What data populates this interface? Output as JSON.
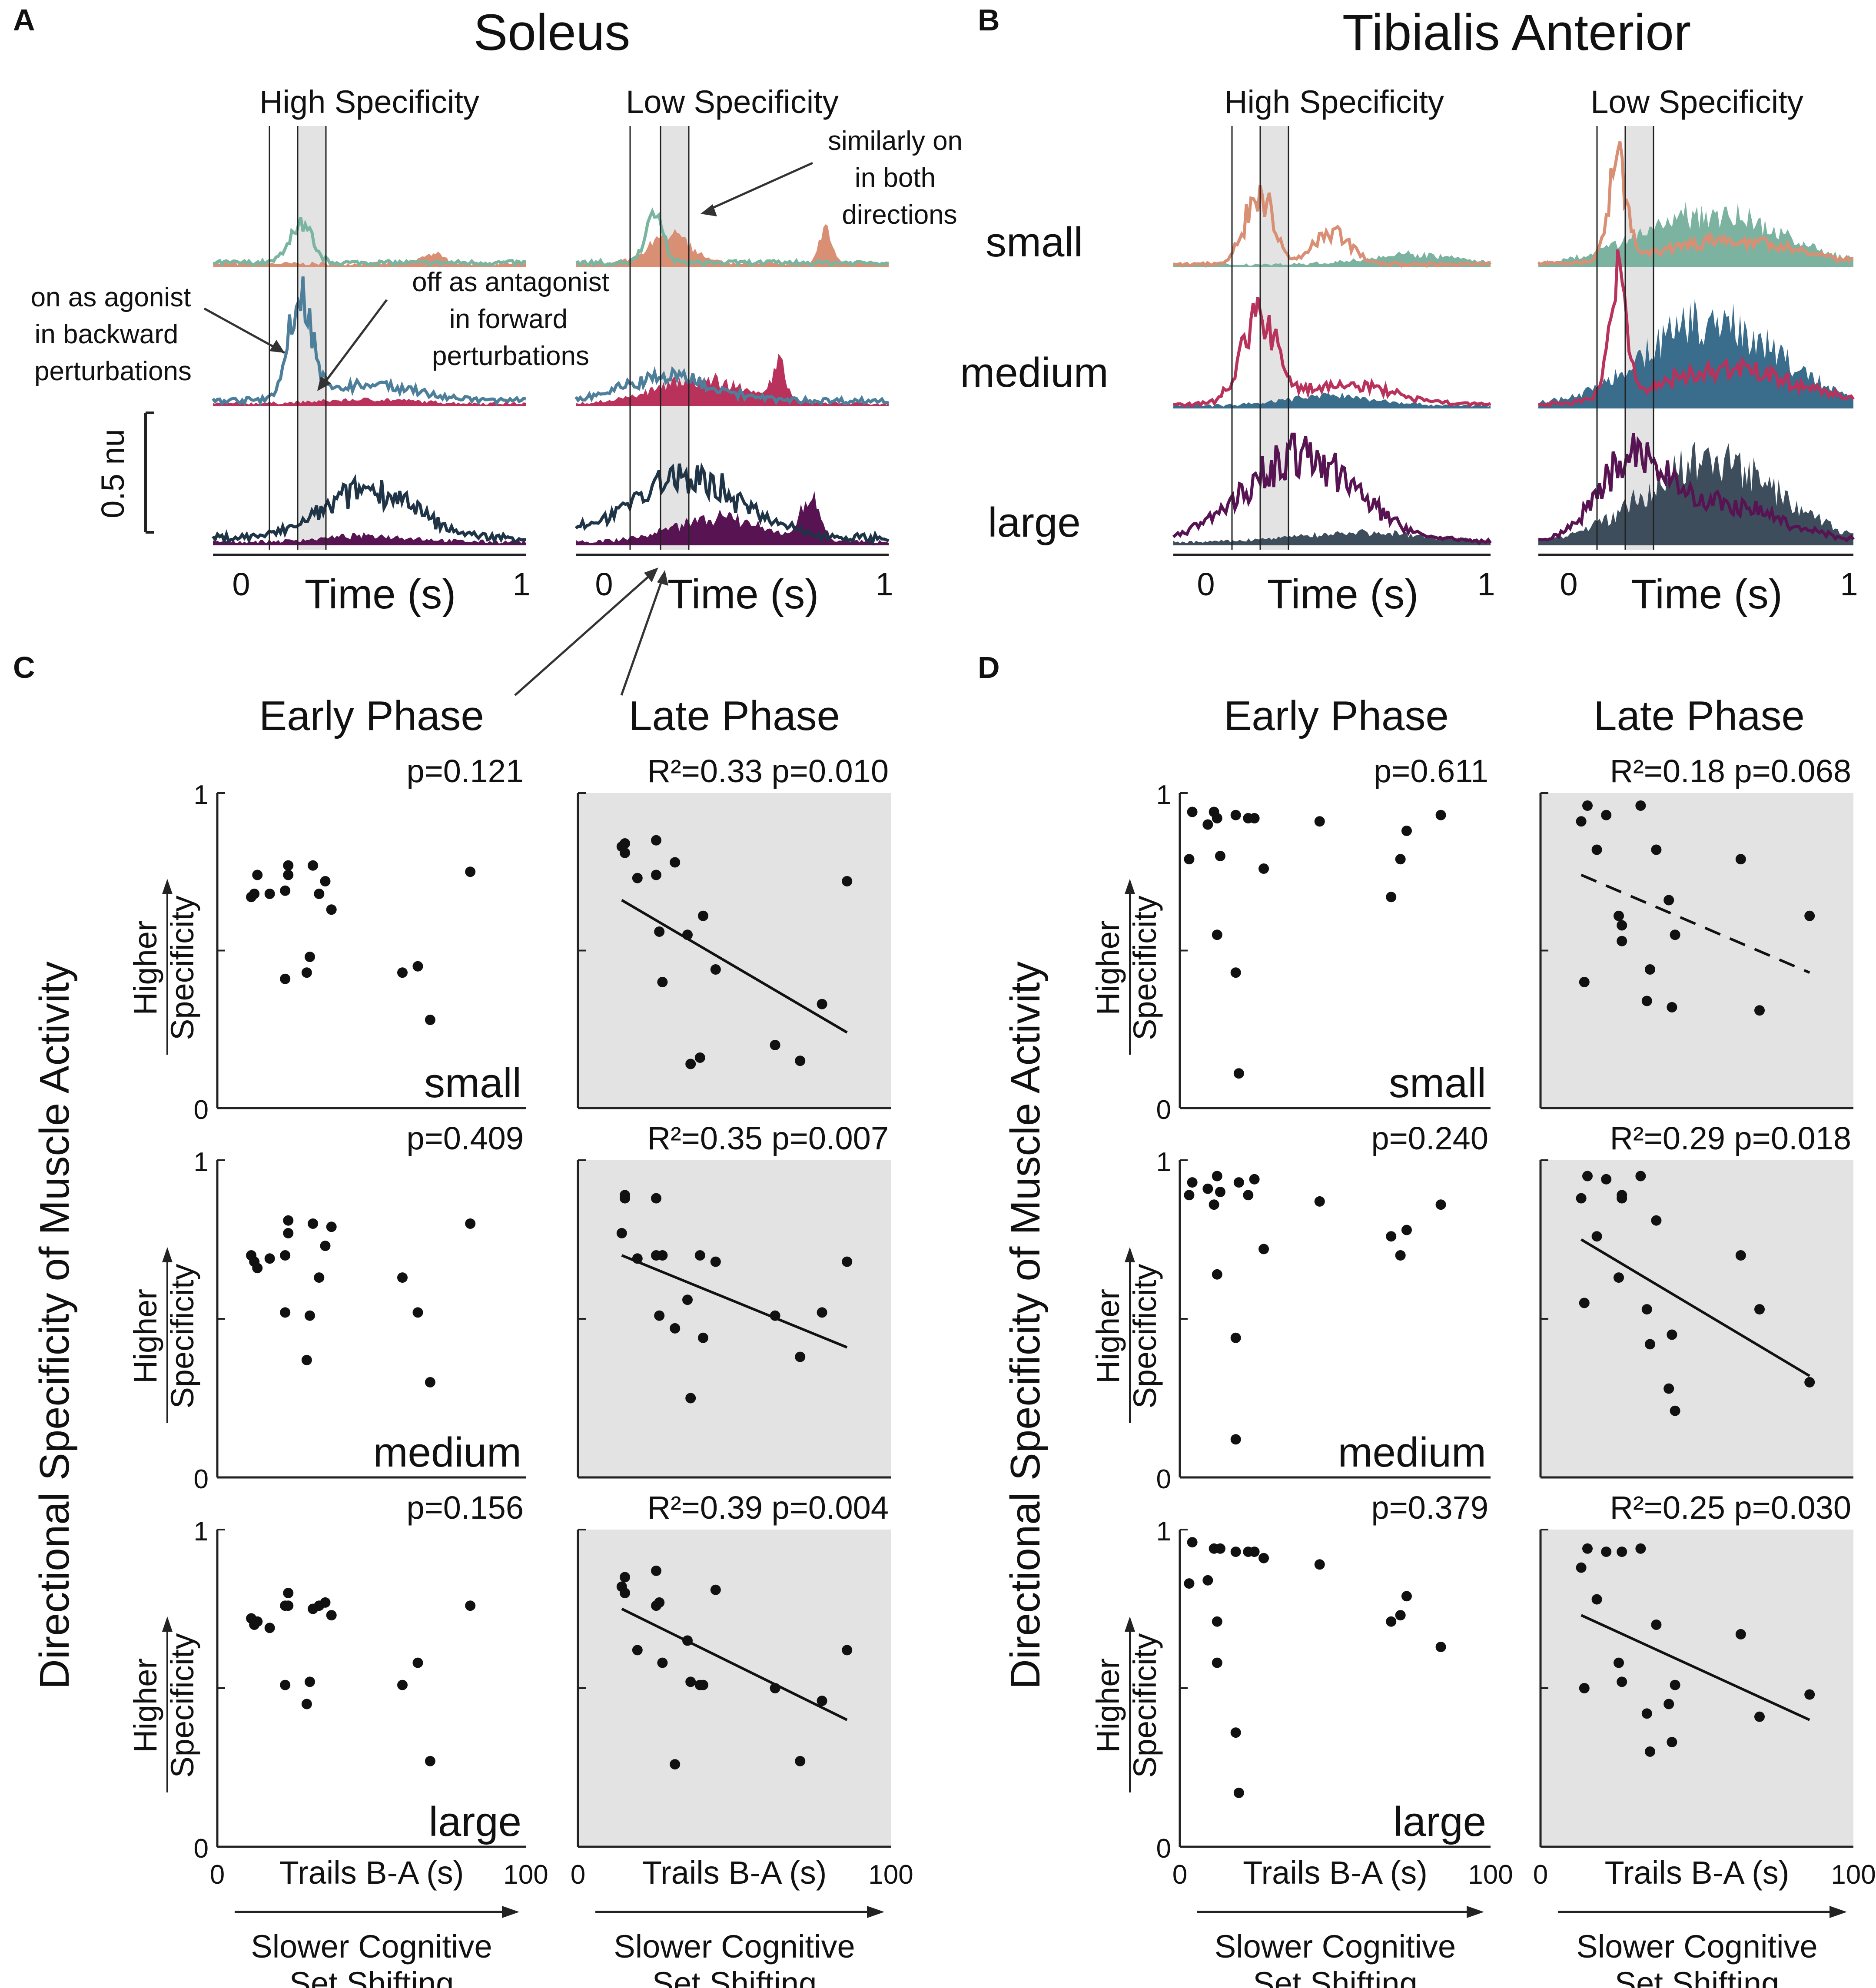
{
  "colors": {
    "soleus": {
      "small": "#d98f74",
      "small_line": "#7ab5a0",
      "medium": "#b8325c",
      "medium_line": "#4d7f9a",
      "large": "#581452",
      "large_line": "#1f3446"
    },
    "ta": {
      "small": "#7cb3a0",
      "small_line": "#d98f74",
      "medium": "#3a6c8c",
      "medium_line": "#b8325c",
      "large": "#3d4d5c",
      "large_line": "#581452"
    },
    "window": "#e3e3e3",
    "scatter_bg": "#e3e3e3"
  },
  "panels": {
    "A": {
      "letter": "A",
      "title": "Soleus"
    },
    "B": {
      "letter": "B",
      "title": "Tibialis Anterior"
    },
    "C": {
      "letter": "C"
    },
    "D": {
      "letter": "D"
    }
  },
  "traces": {
    "high_title": "High Specificity",
    "low_title": "Low Specificity",
    "xlabel": "Time (s)",
    "tick0": "0",
    "tick1": "1",
    "row_labels": [
      "small",
      "medium",
      "large"
    ],
    "scale_label": "0.5 nu",
    "annotations": {
      "agonist": [
        "on as agonist",
        "in backward",
        "perturbations"
      ],
      "antagonist": [
        "off as antagonist",
        "in forward",
        "perturbations"
      ],
      "similarly": [
        "similarly on",
        "in both",
        "directions"
      ]
    }
  },
  "scatter_text": {
    "early_title": "Early Phase",
    "late_title": "Late Phase",
    "xlabel": "Trails B-A (s)",
    "x0": "0",
    "x100": "100",
    "y0": "0",
    "y1": "1",
    "higher": "Higher",
    "specificity": "Specificity",
    "arrow_label_1": "Slower Cognitive",
    "arrow_label_2": "Set Shifting",
    "big_ylabel": "Directional Specificity of Muscle Activity"
  },
  "chart_data": [
    {
      "type": "scatter",
      "muscle": "Soleus",
      "phase": "Early Phase",
      "size": "small",
      "stat": "p=0.121",
      "fit": "none",
      "xlim": [
        0,
        100
      ],
      "ylim": [
        0,
        1
      ],
      "x": [
        11,
        12,
        13,
        17,
        22,
        22,
        23,
        23,
        29,
        30,
        31,
        33,
        35,
        37,
        60,
        65,
        69,
        82
      ],
      "y": [
        0.67,
        0.68,
        0.74,
        0.68,
        0.41,
        0.69,
        0.74,
        0.77,
        0.43,
        0.48,
        0.77,
        0.68,
        0.72,
        0.63,
        0.43,
        0.45,
        0.28,
        0.75
      ]
    },
    {
      "type": "scatter",
      "muscle": "Soleus",
      "phase": "Late Phase",
      "size": "small",
      "stat": "R²=0.33 p=0.010",
      "fit": "solid",
      "xlim": [
        0,
        100
      ],
      "ylim": [
        0,
        1
      ],
      "x": [
        14,
        15,
        15,
        19,
        25,
        25,
        26,
        27,
        31,
        35,
        36,
        39,
        40,
        44,
        63,
        71,
        78,
        86
      ],
      "y": [
        0.83,
        0.81,
        0.84,
        0.73,
        0.85,
        0.74,
        0.56,
        0.4,
        0.78,
        0.55,
        0.14,
        0.16,
        0.61,
        0.44,
        0.2,
        0.15,
        0.33,
        0.72
      ],
      "line": {
        "x": [
          14,
          86
        ],
        "y": [
          0.66,
          0.24
        ]
      }
    },
    {
      "type": "scatter",
      "muscle": "Soleus",
      "phase": "Early Phase",
      "size": "medium",
      "stat": "p=0.409",
      "fit": "none",
      "xlim": [
        0,
        100
      ],
      "ylim": [
        0,
        1
      ],
      "x": [
        11,
        12,
        13,
        17,
        22,
        22,
        23,
        23,
        29,
        30,
        31,
        33,
        35,
        37,
        60,
        65,
        69,
        82
      ],
      "y": [
        0.7,
        0.68,
        0.66,
        0.69,
        0.52,
        0.7,
        0.77,
        0.81,
        0.37,
        0.51,
        0.8,
        0.63,
        0.73,
        0.79,
        0.63,
        0.52,
        0.3,
        0.8
      ]
    },
    {
      "type": "scatter",
      "muscle": "Soleus",
      "phase": "Late Phase",
      "size": "medium",
      "stat": "R²=0.35 p=0.007",
      "fit": "solid",
      "xlim": [
        0,
        100
      ],
      "ylim": [
        0,
        1
      ],
      "x": [
        14,
        15,
        15,
        19,
        25,
        25,
        26,
        27,
        31,
        35,
        36,
        39,
        40,
        44,
        63,
        71,
        78,
        86
      ],
      "y": [
        0.77,
        0.88,
        0.89,
        0.69,
        0.88,
        0.7,
        0.51,
        0.7,
        0.47,
        0.56,
        0.25,
        0.7,
        0.44,
        0.68,
        0.51,
        0.38,
        0.52,
        0.68
      ],
      "line": {
        "x": [
          14,
          86
        ],
        "y": [
          0.7,
          0.41
        ]
      }
    },
    {
      "type": "scatter",
      "muscle": "Soleus",
      "phase": "Early Phase",
      "size": "large",
      "stat": "p=0.156",
      "fit": "none",
      "xlim": [
        0,
        100
      ],
      "ylim": [
        0,
        1
      ],
      "x": [
        11,
        12,
        13,
        17,
        22,
        22,
        23,
        23,
        29,
        30,
        31,
        33,
        35,
        37,
        60,
        65,
        69,
        82
      ],
      "y": [
        0.72,
        0.7,
        0.71,
        0.69,
        0.51,
        0.76,
        0.8,
        0.76,
        0.45,
        0.52,
        0.75,
        0.76,
        0.77,
        0.73,
        0.51,
        0.58,
        0.27,
        0.76
      ]
    },
    {
      "type": "scatter",
      "muscle": "Soleus",
      "phase": "Late Phase",
      "size": "large",
      "stat": "R²=0.39 p=0.004",
      "fit": "solid",
      "xlim": [
        0,
        100
      ],
      "ylim": [
        0,
        1
      ],
      "x": [
        14,
        15,
        15,
        19,
        25,
        25,
        26,
        27,
        31,
        35,
        36,
        39,
        40,
        44,
        63,
        71,
        78,
        86
      ],
      "y": [
        0.82,
        0.85,
        0.8,
        0.62,
        0.87,
        0.76,
        0.77,
        0.58,
        0.26,
        0.65,
        0.52,
        0.51,
        0.51,
        0.81,
        0.5,
        0.27,
        0.46,
        0.62
      ],
      "line": {
        "x": [
          14,
          86
        ],
        "y": [
          0.75,
          0.4
        ]
      }
    },
    {
      "type": "scatter",
      "muscle": "Tibialis Anterior",
      "phase": "Early Phase",
      "size": "small",
      "stat": "p=0.611",
      "fit": "none",
      "xlim": [
        0,
        100
      ],
      "ylim": [
        0,
        1
      ],
      "x": [
        3,
        4,
        9,
        11,
        12,
        12,
        13,
        18,
        18,
        19,
        22,
        24,
        27,
        45,
        68,
        71,
        73,
        84
      ],
      "y": [
        0.79,
        0.94,
        0.9,
        0.94,
        0.92,
        0.55,
        0.8,
        0.93,
        0.43,
        0.11,
        0.92,
        0.92,
        0.76,
        0.91,
        0.67,
        0.79,
        0.88,
        0.93
      ],
      "xscale_note": "x plotted on 0-100 axis"
    },
    {
      "type": "scatter",
      "muscle": "Tibialis Anterior",
      "phase": "Late Phase",
      "size": "small",
      "stat": "R²=0.18 p=0.068",
      "fit": "dashed",
      "xlim": [
        0,
        100
      ],
      "ylim": [
        0,
        1
      ],
      "x": [
        13,
        14,
        15,
        18,
        21,
        25,
        26,
        26,
        32,
        34,
        35,
        37,
        41,
        42,
        43,
        64,
        70,
        86
      ],
      "y": [
        0.91,
        0.4,
        0.96,
        0.82,
        0.93,
        0.61,
        0.53,
        0.58,
        0.96,
        0.34,
        0.44,
        0.82,
        0.66,
        0.32,
        0.55,
        0.79,
        0.31,
        0.61
      ],
      "line": {
        "x": [
          13,
          86
        ],
        "y": [
          0.74,
          0.43
        ]
      }
    },
    {
      "type": "scatter",
      "muscle": "Tibialis Anterior",
      "phase": "Early Phase",
      "size": "medium",
      "stat": "p=0.240",
      "fit": "none",
      "xlim": [
        0,
        100
      ],
      "ylim": [
        0,
        1
      ],
      "x": [
        3,
        4,
        9,
        11,
        12,
        12,
        13,
        18,
        18,
        19,
        22,
        24,
        27,
        45,
        68,
        71,
        73,
        84
      ],
      "y": [
        0.89,
        0.93,
        0.91,
        0.86,
        0.64,
        0.95,
        0.9,
        0.44,
        0.12,
        0.93,
        0.89,
        0.94,
        0.72,
        0.87,
        0.76,
        0.7,
        0.78,
        0.86
      ]
    },
    {
      "type": "scatter",
      "muscle": "Tibialis Anterior",
      "phase": "Late Phase",
      "size": "medium",
      "stat": "R²=0.29 p=0.018",
      "fit": "solid",
      "xlim": [
        0,
        100
      ],
      "ylim": [
        0,
        1
      ],
      "x": [
        13,
        14,
        15,
        18,
        21,
        25,
        26,
        26,
        32,
        34,
        35,
        37,
        41,
        42,
        43,
        64,
        70,
        86
      ],
      "y": [
        0.88,
        0.55,
        0.95,
        0.76,
        0.94,
        0.63,
        0.89,
        0.88,
        0.95,
        0.53,
        0.42,
        0.81,
        0.28,
        0.45,
        0.21,
        0.7,
        0.53,
        0.3
      ],
      "line": {
        "x": [
          13,
          86
        ],
        "y": [
          0.75,
          0.32
        ]
      }
    },
    {
      "type": "scatter",
      "muscle": "Tibialis Anterior",
      "phase": "Early Phase",
      "size": "large",
      "stat": "p=0.379",
      "fit": "none",
      "xlim": [
        0,
        100
      ],
      "ylim": [
        0,
        1
      ],
      "x": [
        3,
        4,
        9,
        11,
        12,
        12,
        13,
        18,
        18,
        19,
        22,
        24,
        27,
        45,
        68,
        71,
        73,
        84
      ],
      "y": [
        0.83,
        0.96,
        0.84,
        0.94,
        0.58,
        0.71,
        0.94,
        0.93,
        0.36,
        0.17,
        0.93,
        0.93,
        0.91,
        0.89,
        0.71,
        0.73,
        0.79,
        0.63
      ]
    },
    {
      "type": "scatter",
      "muscle": "Tibialis Anterior",
      "phase": "Late Phase",
      "size": "large",
      "stat": "R²=0.25 p=0.030",
      "fit": "solid",
      "xlim": [
        0,
        100
      ],
      "ylim": [
        0,
        1
      ],
      "x": [
        13,
        14,
        15,
        18,
        21,
        25,
        26,
        26,
        32,
        34,
        35,
        37,
        41,
        42,
        43,
        64,
        70,
        86
      ],
      "y": [
        0.88,
        0.5,
        0.94,
        0.78,
        0.93,
        0.58,
        0.52,
        0.93,
        0.94,
        0.42,
        0.3,
        0.7,
        0.45,
        0.33,
        0.51,
        0.67,
        0.41,
        0.48
      ],
      "line": {
        "x": [
          13,
          86
        ],
        "y": [
          0.73,
          0.4
        ]
      }
    }
  ]
}
